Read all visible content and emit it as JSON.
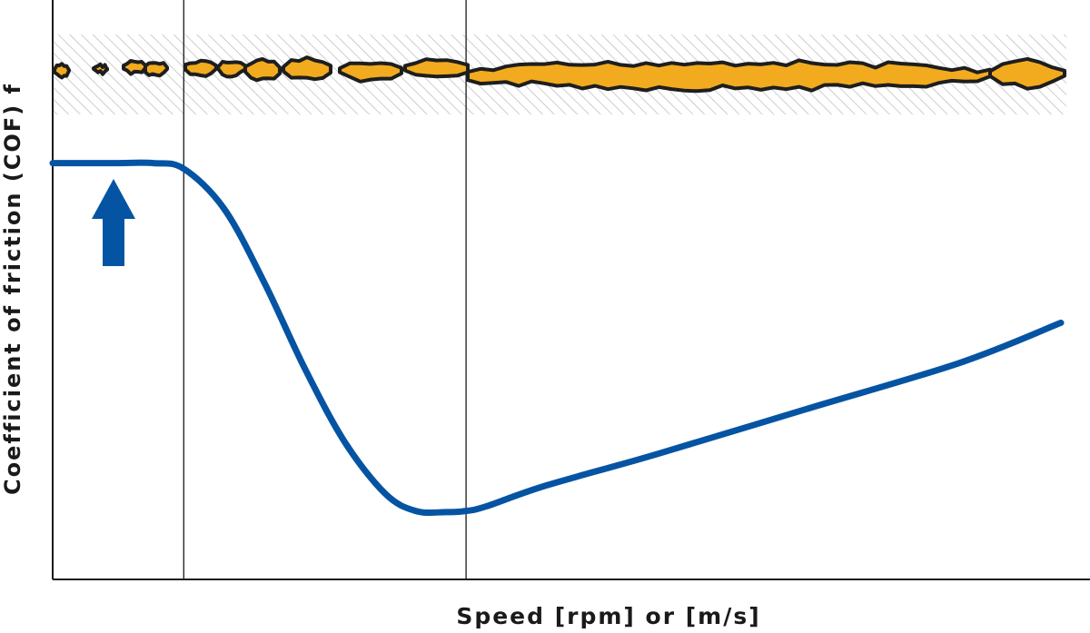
{
  "chart_data": {
    "type": "line",
    "title": "",
    "xlabel": "Speed [rpm] or [m/s]",
    "ylabel": "Coefficient of friction (COF) f",
    "xlim": [
      0,
      100
    ],
    "ylim": [
      0,
      100
    ],
    "regions": [
      {
        "x_start": 0,
        "x_end": 13
      },
      {
        "x_start": 13,
        "x_end": 41
      },
      {
        "x_start": 41,
        "x_end": 100
      }
    ],
    "series": [
      {
        "x": [
          0,
          6,
          10,
          13,
          17,
          21,
          25,
          29,
          33,
          36,
          39,
          41,
          43,
          49,
          60,
          75,
          90,
          100
        ],
        "values": [
          73,
          73,
          73,
          72,
          65,
          52,
          37,
          24,
          15,
          12,
          11.8,
          12,
          12.8,
          16.5,
          22,
          30,
          38,
          45
        ]
      }
    ],
    "grid": false,
    "legend": "none",
    "colors": {
      "curve": "#0554a3",
      "arrow": "#0554a3",
      "lubricant": "#f2ab1f",
      "outline": "#1e1e1e",
      "hatch": "#b9b9b9",
      "axis": "#1a1a1a"
    },
    "icons": [
      "up-arrow-icon",
      "lubricant-film-strip"
    ]
  }
}
